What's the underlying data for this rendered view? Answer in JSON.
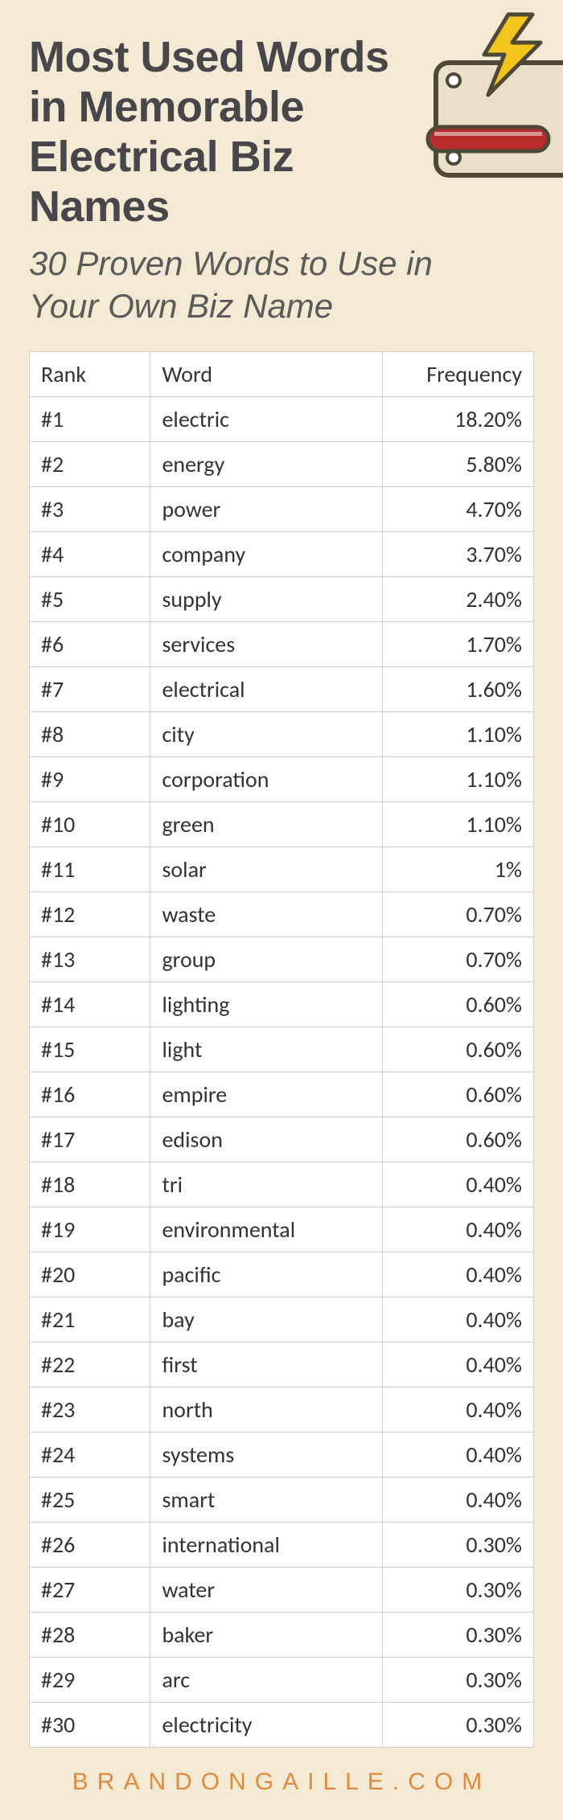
{
  "page": {
    "background_color": "#f4ead4"
  },
  "title": {
    "text": "Most Used Words in Memorable Electrical Biz Names",
    "color": "#47464a",
    "fontsize": 54
  },
  "subtitle": {
    "text": "30 Proven Words to Use in Your Own Biz Name",
    "color": "#595a5a",
    "fontsize": 42
  },
  "icon": {
    "bolt_fill": "#f3c41c",
    "stroke": "#4e4836",
    "handle_red": "#b82b2b",
    "body_fill": "#e9e0c7"
  },
  "table": {
    "columns": [
      "Rank",
      "Word",
      "Frequency"
    ],
    "column_widths": [
      "24%",
      "46%",
      "30%"
    ],
    "rows": [
      [
        "#1",
        "electric",
        "18.20%"
      ],
      [
        "#2",
        "energy",
        "5.80%"
      ],
      [
        "#3",
        "power",
        "4.70%"
      ],
      [
        "#4",
        "company",
        "3.70%"
      ],
      [
        "#5",
        "supply",
        "2.40%"
      ],
      [
        "#6",
        "services",
        "1.70%"
      ],
      [
        "#7",
        "electrical",
        "1.60%"
      ],
      [
        "#8",
        "city",
        "1.10%"
      ],
      [
        "#9",
        "corporation",
        "1.10%"
      ],
      [
        "#10",
        "green",
        "1.10%"
      ],
      [
        "#11",
        "solar",
        "1%"
      ],
      [
        "#12",
        "waste",
        "0.70%"
      ],
      [
        "#13",
        "group",
        "0.70%"
      ],
      [
        "#14",
        "lighting",
        "0.60%"
      ],
      [
        "#15",
        "light",
        "0.60%"
      ],
      [
        "#16",
        "empire",
        "0.60%"
      ],
      [
        "#17",
        "edison",
        "0.60%"
      ],
      [
        "#18",
        "tri",
        "0.40%"
      ],
      [
        "#19",
        "environmental",
        "0.40%"
      ],
      [
        "#20",
        "pacific",
        "0.40%"
      ],
      [
        "#21",
        "bay",
        "0.40%"
      ],
      [
        "#22",
        "first",
        "0.40%"
      ],
      [
        "#23",
        "north",
        "0.40%"
      ],
      [
        "#24",
        "systems",
        "0.40%"
      ],
      [
        "#25",
        "smart",
        "0.40%"
      ],
      [
        "#26",
        "international",
        "0.30%"
      ],
      [
        "#27",
        "water",
        "0.30%"
      ],
      [
        "#28",
        "baker",
        "0.30%"
      ],
      [
        "#29",
        "arc",
        "0.30%"
      ],
      [
        "#30",
        "electricity",
        "0.30%"
      ]
    ],
    "cell_fontsize": 28,
    "border_color": "#d0d0d0",
    "background": "#ffffff"
  },
  "footer": {
    "text": "BRANDONGAILLE.COM",
    "color": "#e08a3d"
  }
}
